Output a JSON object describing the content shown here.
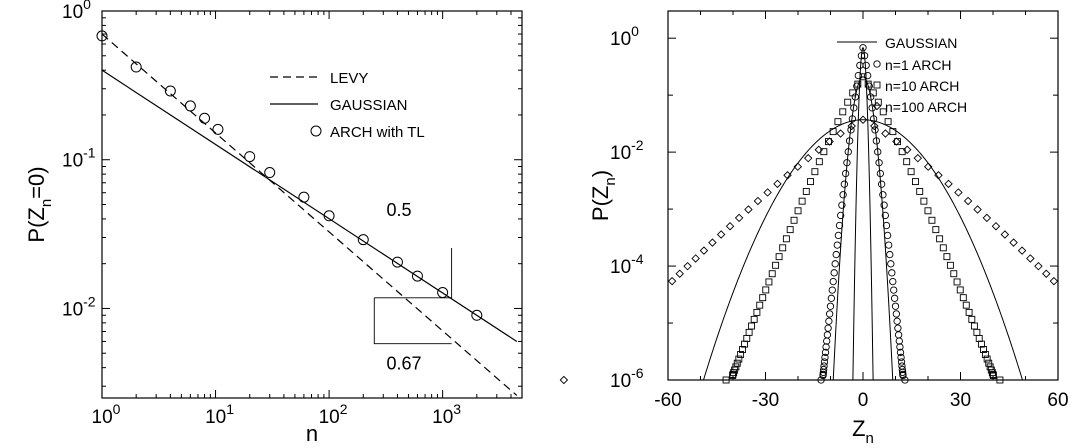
{
  "chart_data": [
    {
      "type": "line",
      "xscale": "log",
      "yscale": "log",
      "xlim": [
        1,
        5000
      ],
      "ylim": [
        0.0025,
        1
      ],
      "xlabel": "n",
      "ylabel": "P(Z_n=0)",
      "x_ticks": [
        {
          "value": 1,
          "base": "10",
          "exp": "0"
        },
        {
          "value": 10,
          "base": "10",
          "exp": "1"
        },
        {
          "value": 100,
          "base": "10",
          "exp": "2"
        },
        {
          "value": 1000,
          "base": "10",
          "exp": "3"
        }
      ],
      "y_ticks": [
        {
          "value": 1,
          "base": "10",
          "exp": "0"
        },
        {
          "value": 0.1,
          "base": "10",
          "exp": "-1"
        },
        {
          "value": 0.01,
          "base": "10",
          "exp": "-2"
        }
      ],
      "legend_position": "top-right",
      "series": [
        {
          "name": "LEVY",
          "style": "dashed",
          "kind": "line",
          "points": [
            [
              1,
              0.7
            ],
            [
              4500,
              0.0026
            ]
          ]
        },
        {
          "name": "GAUSSIAN",
          "style": "solid",
          "kind": "line",
          "points": [
            [
              1,
              0.4
            ],
            [
              4500,
              0.006
            ]
          ]
        },
        {
          "name": "ARCH with TL",
          "style": "circle",
          "kind": "markers",
          "points": [
            [
              1,
              0.68
            ],
            [
              2,
              0.42
            ],
            [
              4,
              0.29
            ],
            [
              6,
              0.23
            ],
            [
              8,
              0.19
            ],
            [
              10.5,
              0.16
            ],
            [
              20,
              0.105
            ],
            [
              30,
              0.082
            ],
            [
              60,
              0.056
            ],
            [
              100,
              0.042
            ],
            [
              200,
              0.029
            ],
            [
              400,
              0.0205
            ],
            [
              600,
              0.0165
            ],
            [
              1000,
              0.0128
            ],
            [
              2000,
              0.009
            ]
          ]
        }
      ],
      "annotations": [
        {
          "text": "0.5",
          "x": 320,
          "y": 0.042
        },
        {
          "text": "0.67",
          "x": 320,
          "y": 0.0039
        }
      ],
      "triangles": [
        {
          "kind": "gaussian-slope",
          "points": [
            [
              1200,
              0.0255
            ],
            [
              1200,
              0.0118
            ],
            [
              250,
              0.0118
            ]
          ]
        },
        {
          "kind": "levy-slope",
          "points": [
            [
              250,
              0.0118
            ],
            [
              250,
              0.0058
            ],
            [
              1200,
              0.0058
            ]
          ]
        }
      ]
    },
    {
      "type": "scatter",
      "xscale": "linear",
      "yscale": "log",
      "xlim": [
        -60,
        60
      ],
      "ylim": [
        1e-06,
        3
      ],
      "xlabel": "Z_n",
      "ylabel": "P(Z_n)",
      "x_ticks": [
        -60,
        -30,
        0,
        30,
        60
      ],
      "y_ticks": [
        {
          "value": 1,
          "base": "10",
          "exp": "0"
        },
        {
          "value": 0.01,
          "base": "10",
          "exp": "-2"
        },
        {
          "value": 0.0001,
          "base": "10",
          "exp": "-4"
        },
        {
          "value": 1e-06,
          "base": "10",
          "exp": "-6"
        }
      ],
      "legend_position": "top-right",
      "legend": [
        {
          "label": "GAUSSIAN",
          "marker": "line"
        },
        {
          "label": "n=1  ARCH",
          "marker": "circle"
        },
        {
          "label": "n=10  ARCH",
          "marker": "square"
        },
        {
          "label": "n=100  ARCH",
          "marker": "diamond"
        }
      ],
      "gaussian_curves": [
        {
          "sigma": 0.6,
          "peak": 0.68
        },
        {
          "sigma": 1.85,
          "peak": 0.21
        },
        {
          "sigma": 10.7,
          "peak": 0.037
        }
      ],
      "series": [
        {
          "name": "n=1  ARCH",
          "marker": "circle",
          "scale": 1.3,
          "peak": 0.68
        },
        {
          "name": "n=10  ARCH",
          "marker": "square",
          "scale": 4.6,
          "peak": 0.21
        },
        {
          "name": "n=100  ARCH",
          "marker": "diamond",
          "scale": 11.5,
          "peak": 0.037
        }
      ]
    }
  ]
}
